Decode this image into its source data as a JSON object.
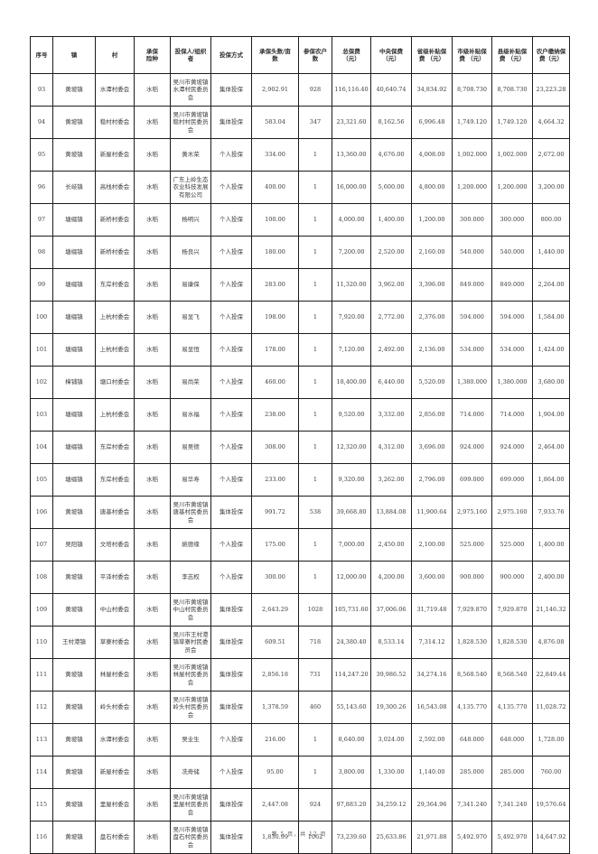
{
  "page": {
    "footer": "第 5 页，共 12 页"
  },
  "table": {
    "headers": [
      "序号",
      "镇",
      "村",
      "承保\n险种",
      "投保人/组织\n者",
      "投保方式",
      "承保头数/亩\n数",
      "参保农户数",
      "总保费\n（元）",
      "中央保费\n（元）",
      "省级补贴保\n费 （元）",
      "市级补贴保\n费 （元）",
      "县级补贴保\n费 （元）",
      "农户缴纳保\n费（元）"
    ],
    "rows": [
      [
        "93",
        "黄坡镇",
        "水潭村委会",
        "水稻",
        "吴川市黄坡镇水潭村民委员会",
        "集体投保",
        "2,902.91",
        "928",
        "116,116.40",
        "40,640.74",
        "34,834.92",
        "8,708.730",
        "8,708.730",
        "23,223.28"
      ],
      [
        "94",
        "黄坡镇",
        "稳村村委会",
        "水稻",
        "吴川市黄坡镇稳村村民委员会",
        "集体投保",
        "583.04",
        "347",
        "23,321.60",
        "8,162.56",
        "6,996.48",
        "1,749.120",
        "1,749.120",
        "4,664.32"
      ],
      [
        "95",
        "黄坡镇",
        "新屋村委会",
        "水稻",
        "黄木荣",
        "个人投保",
        "334.00",
        "1",
        "13,360.00",
        "4,676.00",
        "4,008.00",
        "1,002.000",
        "1,002.000",
        "2,672.00"
      ],
      [
        "96",
        "长岐镇",
        "高栈村委会",
        "水稻",
        "广东上岭生态农业科技发展有限公司",
        "个人投保",
        "400.00",
        "1",
        "16,000.00",
        "5,600.00",
        "4,800.00",
        "1,200.000",
        "1,200.000",
        "3,200.00"
      ],
      [
        "97",
        "塘缀镇",
        "新桥村委会",
        "水稻",
        "杨明兴",
        "个人投保",
        "100.00",
        "1",
        "4,000.00",
        "1,400.00",
        "1,200.00",
        "300.000",
        "300.000",
        "800.00"
      ],
      [
        "98",
        "塘缀镇",
        "新桥村委会",
        "水稻",
        "杨良兴",
        "个人投保",
        "180.00",
        "1",
        "7,200.00",
        "2,520.00",
        "2,160.00",
        "540.000",
        "540.000",
        "1,440.00"
      ],
      [
        "99",
        "塘缀镇",
        "东岸村委会",
        "水稻",
        "易康保",
        "个人投保",
        "283.00",
        "1",
        "11,320.00",
        "3,962.00",
        "3,396.00",
        "849.000",
        "849.000",
        "2,264.00"
      ],
      [
        "100",
        "塘缀镇",
        "上杭村委会",
        "水稻",
        "易显飞",
        "个人投保",
        "198.00",
        "1",
        "7,920.00",
        "2,772.00",
        "2,376.00",
        "594.000",
        "594.000",
        "1,584.00"
      ],
      [
        "101",
        "塘缀镇",
        "上杭村委会",
        "水稻",
        "易显恒",
        "个人投保",
        "178.00",
        "1",
        "7,120.00",
        "2,492.00",
        "2,136.00",
        "534.000",
        "534.000",
        "1,424.00"
      ],
      [
        "102",
        "樟铺镇",
        "塘口村委会",
        "水稻",
        "易尚荣",
        "个人投保",
        "460.00",
        "1",
        "18,400.00",
        "6,440.00",
        "5,520.00",
        "1,380.000",
        "1,380.000",
        "3,680.00"
      ],
      [
        "103",
        "塘缀镇",
        "上杭村委会",
        "水稻",
        "易水福",
        "个人投保",
        "238.00",
        "1",
        "9,520.00",
        "3,332.00",
        "2,856.00",
        "714.000",
        "714.000",
        "1,904.00"
      ],
      [
        "104",
        "塘缀镇",
        "东岸村委会",
        "水稻",
        "易吴德",
        "个人投保",
        "308.00",
        "1",
        "12,320.00",
        "4,312.00",
        "3,696.00",
        "924.000",
        "924.000",
        "2,464.00"
      ],
      [
        "105",
        "塘缀镇",
        "东岸村委会",
        "水稻",
        "易华寿",
        "个人投保",
        "233.00",
        "1",
        "9,320.00",
        "3,262.00",
        "2,796.00",
        "699.000",
        "699.000",
        "1,864.00"
      ],
      [
        "106",
        "黄坡镇",
        "唐基村委会",
        "水稻",
        "吴川市黄坡镇唐基村民委员会",
        "集体投保",
        "991.72",
        "538",
        "39,668.80",
        "13,884.08",
        "11,900.64",
        "2,975.160",
        "2,975.160",
        "7,933.76"
      ],
      [
        "107",
        "吴阳镇",
        "文塔村委会",
        "水稻",
        "姚德缘",
        "个人投保",
        "175.00",
        "1",
        "7,000.00",
        "2,450.00",
        "2,100.00",
        "525.000",
        "525.000",
        "1,400.00"
      ],
      [
        "108",
        "黄坡镇",
        "平泽村委会",
        "水稻",
        "李志权",
        "个人投保",
        "300.00",
        "1",
        "12,000.00",
        "4,200.00",
        "3,600.00",
        "900.000",
        "900.000",
        "2,400.00"
      ],
      [
        "109",
        "黄坡镇",
        "中山村委会",
        "水稻",
        "吴川市黄坡镇中山村民委员会",
        "集体投保",
        "2,643.29",
        "1028",
        "105,731.60",
        "37,006.06",
        "31,719.48",
        "7,929.870",
        "7,929.870",
        "21,146.32"
      ],
      [
        "110",
        "王村港镇",
        "草寮村委会",
        "水稻",
        "吴川市王村港镇草寮村民委员会",
        "集体投保",
        "609.51",
        "718",
        "24,380.40",
        "8,533.14",
        "7,314.12",
        "1,828.530",
        "1,828.530",
        "4,876.08"
      ],
      [
        "111",
        "黄坡镇",
        "林屋村委会",
        "水稻",
        "吴川市黄坡镇林屋村民委员会",
        "集体投保",
        "2,856.18",
        "731",
        "114,247.20",
        "39,986.52",
        "34,274.16",
        "8,568.540",
        "8,568.540",
        "22,849.44"
      ],
      [
        "112",
        "黄坡镇",
        "岭头村委会",
        "水稻",
        "吴川市黄坡镇岭头村民委员会",
        "集体投保",
        "1,378.59",
        "460",
        "55,143.60",
        "19,300.26",
        "16,543.08",
        "4,135.770",
        "4,135.770",
        "11,028.72"
      ],
      [
        "113",
        "黄坡镇",
        "水潭村委会",
        "水稻",
        "吴业生",
        "个人投保",
        "216.00",
        "1",
        "8,640.00",
        "3,024.00",
        "2,592.00",
        "648.000",
        "648.000",
        "1,728.00"
      ],
      [
        "114",
        "黄坡镇",
        "新屋村委会",
        "水稻",
        "冼奇储",
        "个人投保",
        "95.00",
        "1",
        "3,800.00",
        "1,330.00",
        "1,140.00",
        "285.000",
        "285.000",
        "760.00"
      ],
      [
        "115",
        "黄坡镇",
        "里屋村委会",
        "水稻",
        "吴川市黄坡镇里屋村民委员会",
        "集体投保",
        "2,447.08",
        "924",
        "97,883.20",
        "34,259.12",
        "29,364.96",
        "7,341.240",
        "7,341.240",
        "19,576.64"
      ],
      [
        "116",
        "黄坡镇",
        "盘石村委会",
        "水稻",
        "吴川市黄坡镇盘石村民委员会",
        "集体投保",
        "1,830.99",
        "1062",
        "73,239.60",
        "25,633.86",
        "21,971.88",
        "5,492.970",
        "5,492.970",
        "14,647.92"
      ]
    ]
  }
}
